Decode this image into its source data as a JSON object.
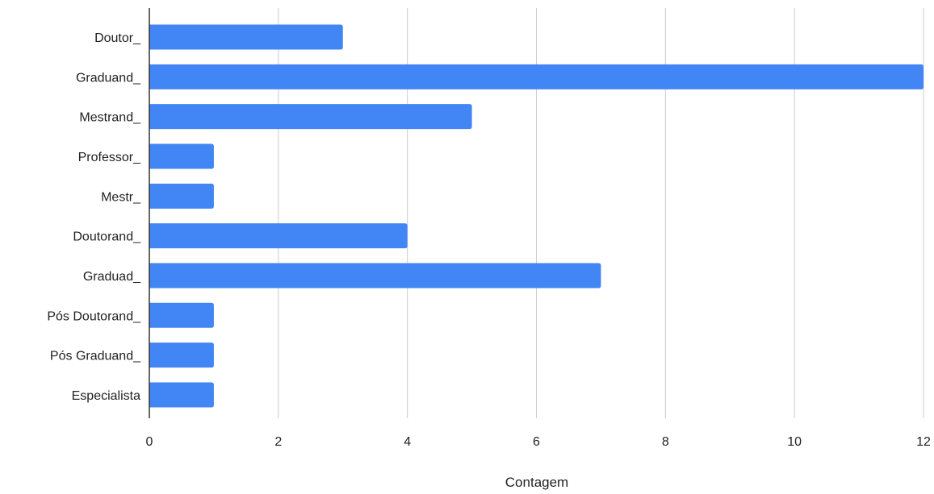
{
  "chart_data": {
    "type": "bar",
    "orientation": "horizontal",
    "categories": [
      "Doutor_",
      "Graduand_",
      "Mestrand_",
      "Professor_",
      "Mestr_",
      "Doutorand_",
      "Graduad_",
      "Pós Doutorand_",
      "Pós Graduand_",
      "Especialista"
    ],
    "values": [
      3,
      12,
      5,
      1,
      1,
      4,
      7,
      1,
      1,
      1
    ],
    "xlabel": "Contagem",
    "ylabel": "",
    "xlim": [
      0,
      12
    ],
    "xticks": [
      0,
      2,
      4,
      6,
      8,
      10,
      12
    ],
    "grid": true,
    "bar_color": "#4285f4",
    "grid_color": "#cccccc",
    "axis_color": "#333333"
  }
}
